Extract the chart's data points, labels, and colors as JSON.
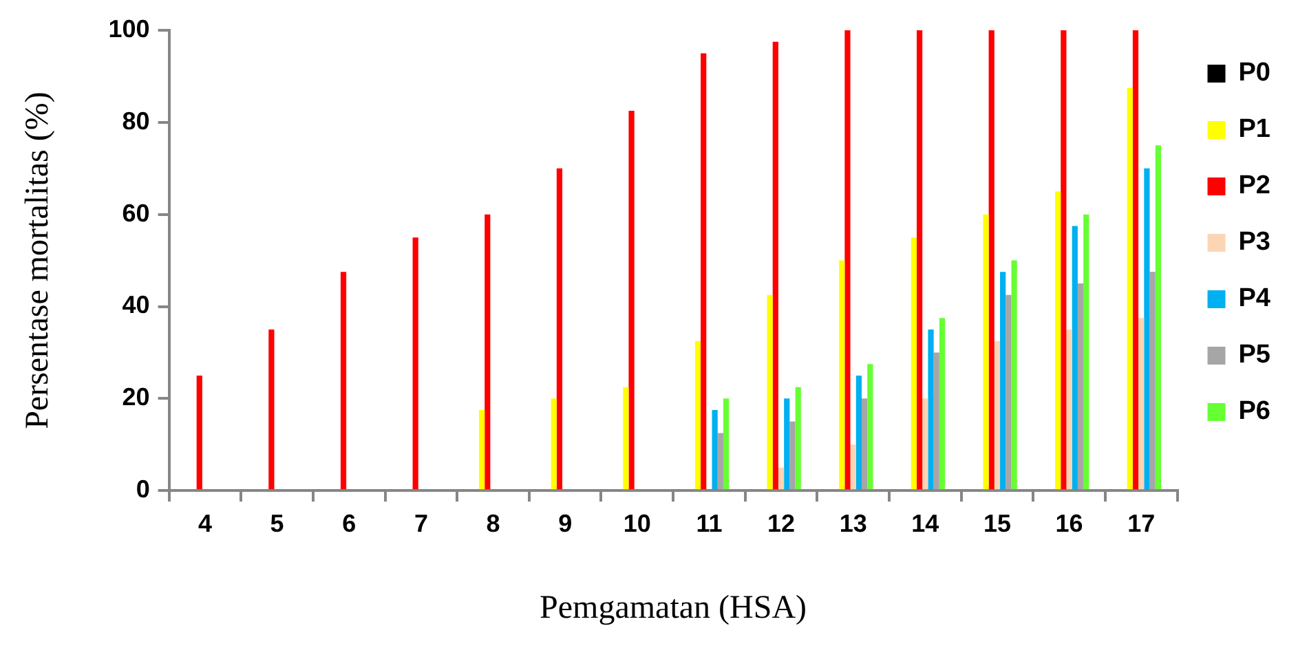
{
  "chart_data": {
    "type": "bar",
    "xlabel": "Pemgamatan (HSA)",
    "ylabel": "Persentase mortalitas (%)",
    "categories": [
      "4",
      "5",
      "6",
      "7",
      "8",
      "9",
      "10",
      "11",
      "12",
      "13",
      "14",
      "15",
      "16",
      "17"
    ],
    "ylim": [
      0,
      100
    ],
    "yticks": [
      0,
      20,
      40,
      60,
      80,
      100
    ],
    "grid": false,
    "legend": "right",
    "series": [
      {
        "name": "P0",
        "color": "#000000",
        "values": [
          0,
          0,
          0,
          0,
          0,
          0,
          0,
          0,
          0,
          0,
          0,
          0,
          0,
          0
        ]
      },
      {
        "name": "P1",
        "color": "#ffff00",
        "values": [
          0,
          0,
          0,
          0,
          17.5,
          20,
          22.5,
          32.5,
          42.5,
          50,
          55,
          60,
          65,
          87.5
        ]
      },
      {
        "name": "P2",
        "color": "#ff0000",
        "values": [
          25,
          35,
          47.5,
          55,
          60,
          70,
          82.5,
          95,
          97.5,
          100,
          100,
          100,
          100,
          100
        ]
      },
      {
        "name": "P3",
        "color": "#fcd5b5",
        "values": [
          0,
          0,
          0,
          0,
          0,
          0,
          0,
          0,
          5,
          10,
          20,
          32.5,
          35,
          37.5
        ]
      },
      {
        "name": "P4",
        "color": "#00b0f0",
        "values": [
          0,
          0,
          0,
          0,
          0,
          0,
          0,
          17.5,
          20,
          25,
          35,
          47.5,
          57.5,
          70
        ]
      },
      {
        "name": "P5",
        "color": "#a6a6a6",
        "values": [
          0,
          0,
          0,
          0,
          0,
          0,
          0,
          12.5,
          15,
          20,
          30,
          42.5,
          45,
          47.5
        ]
      },
      {
        "name": "P6",
        "color": "#66ff33",
        "values": [
          0,
          0,
          0,
          0,
          0,
          0,
          0,
          20,
          22.5,
          27.5,
          37.5,
          50,
          60,
          75
        ]
      }
    ]
  }
}
